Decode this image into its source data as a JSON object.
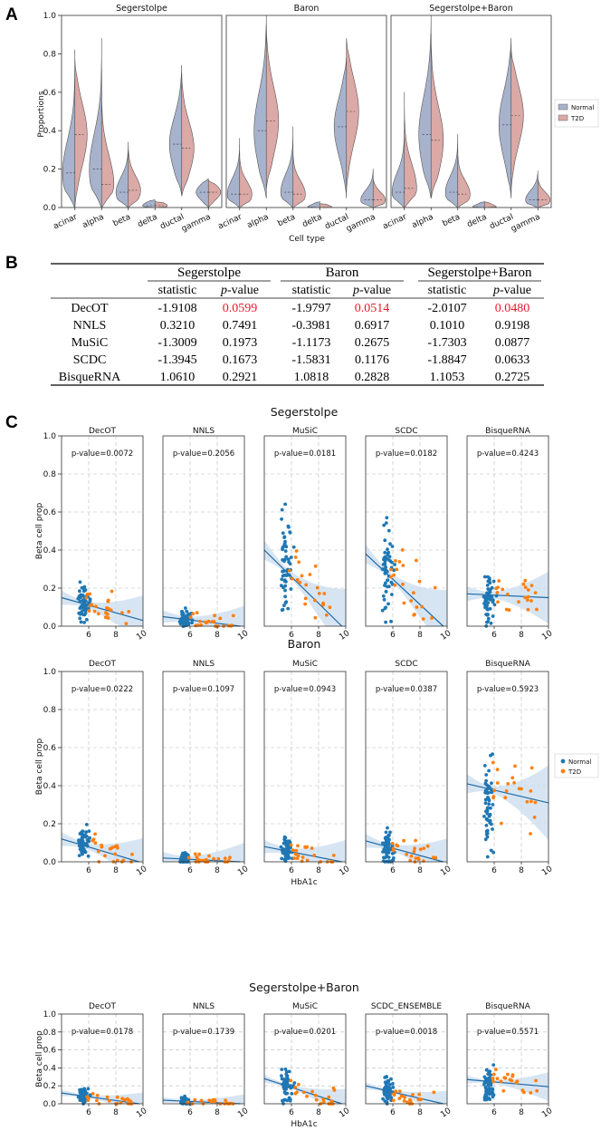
{
  "labels": {
    "A": "A",
    "B": "B",
    "C": "C"
  },
  "colors": {
    "normal": "#a7b3cc",
    "t2d": "#dba9a6",
    "dot_normal": "#1f77b4",
    "dot_t2d": "#ff7f0e",
    "line": "#1f6aa5",
    "band": "#c9dcef",
    "highlight": "#e8192c"
  },
  "panel_a": {
    "chart_data": {
      "type": "violin",
      "ylabel": "Proportions",
      "xlabel": "Cell type",
      "ylim": [
        0,
        1
      ],
      "yticks": [
        "0.0",
        "0.2",
        "0.4",
        "0.6",
        "0.8",
        "1.0"
      ],
      "categories": [
        "acinar",
        "alpha",
        "beta",
        "delta",
        "ductal",
        "gamma"
      ],
      "legend": {
        "position": "right",
        "entries": [
          "Normal",
          "T2D"
        ]
      },
      "panels": [
        {
          "title": "Segerstolpe",
          "normal_range": [
            [
              0,
              0.82
            ],
            [
              0,
              0.88
            ],
            [
              0,
              0.34
            ],
            [
              0,
              0.04
            ],
            [
              0.07,
              0.74
            ],
            [
              0,
              0.15
            ]
          ],
          "t2d_range": [
            [
              0,
              0.77
            ],
            [
              0,
              0.72
            ],
            [
              0,
              0.32
            ],
            [
              0,
              0.03
            ],
            [
              0.06,
              0.7
            ],
            [
              0,
              0.14
            ]
          ],
          "normal_median": [
            0.18,
            0.2,
            0.08,
            0.01,
            0.33,
            0.08
          ],
          "t2d_median": [
            0.38,
            0.12,
            0.09,
            0.01,
            0.31,
            0.08
          ]
        },
        {
          "title": "Baron",
          "normal_range": [
            [
              0,
              0.36
            ],
            [
              0.05,
              1.0
            ],
            [
              0,
              0.42
            ],
            [
              0,
              0.03
            ],
            [
              0.05,
              0.78
            ],
            [
              0,
              0.2
            ]
          ],
          "t2d_range": [
            [
              0,
              0.28
            ],
            [
              0.1,
              0.95
            ],
            [
              0,
              0.3
            ],
            [
              0,
              0.02
            ],
            [
              0.08,
              0.88
            ],
            [
              0,
              0.15
            ]
          ],
          "normal_median": [
            0.07,
            0.4,
            0.08,
            0.0,
            0.42,
            0.04
          ],
          "t2d_median": [
            0.07,
            0.45,
            0.07,
            0.0,
            0.5,
            0.04
          ]
        },
        {
          "title": "Segerstolpe+Baron",
          "normal_range": [
            [
              0,
              0.45
            ],
            [
              0.05,
              1.0
            ],
            [
              0,
              0.38
            ],
            [
              0,
              0.03
            ],
            [
              0.05,
              0.88
            ],
            [
              0,
              0.19
            ]
          ],
          "t2d_range": [
            [
              0,
              0.6
            ],
            [
              0.05,
              0.9
            ],
            [
              0,
              0.3
            ],
            [
              0,
              0.03
            ],
            [
              0.08,
              0.82
            ],
            [
              0,
              0.15
            ]
          ],
          "normal_median": [
            0.08,
            0.38,
            0.08,
            0.0,
            0.43,
            0.04
          ],
          "t2d_median": [
            0.1,
            0.35,
            0.07,
            0.0,
            0.48,
            0.04
          ]
        }
      ]
    }
  },
  "panel_b": {
    "groups": [
      "Segerstolpe",
      "Baron",
      "Segerstolpe+Baron"
    ],
    "subheaders": [
      "statistic",
      "p",
      "-value"
    ],
    "rows": [
      {
        "method": "DecOT",
        "values": [
          "-1.9108",
          "0.0599",
          "-1.9797",
          "0.0514",
          "-2.0107",
          "0.0480"
        ],
        "red": [
          false,
          true,
          false,
          true,
          false,
          true
        ]
      },
      {
        "method": "NNLS",
        "values": [
          "0.3210",
          "0.7491",
          "-0.3981",
          "0.6917",
          "0.1010",
          "0.9198"
        ],
        "red": [
          false,
          false,
          false,
          false,
          false,
          false
        ]
      },
      {
        "method": "MuSiC",
        "values": [
          "-1.3009",
          "0.1973",
          "-1.1173",
          "0.2675",
          "-1.7303",
          "0.0877"
        ],
        "red": [
          false,
          false,
          false,
          false,
          false,
          false
        ]
      },
      {
        "method": "SCDC",
        "values": [
          "-1.3945",
          "0.1673",
          "-1.5831",
          "0.1176",
          "-1.8847",
          "0.0633"
        ],
        "red": [
          false,
          false,
          false,
          false,
          false,
          false
        ]
      },
      {
        "method": "BisqueRNA",
        "values": [
          "1.0610",
          "0.2921",
          "1.0818",
          "0.2828",
          "1.1053",
          "0.2725"
        ],
        "red": [
          false,
          false,
          false,
          false,
          false,
          false
        ]
      }
    ]
  },
  "panel_c": {
    "chart_data": {
      "type": "scatter",
      "ylabel": "Beta cell prop",
      "xlabel": "HbA1c",
      "xlim": [
        4,
        10
      ],
      "ylim": [
        0,
        1
      ],
      "xticks": [
        "6",
        "8",
        "10"
      ],
      "yticks": [
        "0.0",
        "0.2",
        "0.4",
        "0.6",
        "0.8",
        "1.0"
      ],
      "legend": {
        "position": "right",
        "entries": [
          "Normal",
          "T2D"
        ]
      },
      "rows": [
        {
          "title": "Segerstolpe",
          "plots": [
            {
              "method": "DecOT",
              "pvalue": "p-value=0.0072",
              "fit": [
                0.15,
                0.03
              ]
            },
            {
              "method": "NNLS",
              "pvalue": "p-value=0.2056",
              "fit": [
                0.05,
                0.0
              ]
            },
            {
              "method": "MuSiC",
              "pvalue": "p-value=0.0181",
              "fit": [
                0.4,
                0.0
              ]
            },
            {
              "method": "SCDC",
              "pvalue": "p-value=0.0182",
              "fit": [
                0.38,
                0.0
              ]
            },
            {
              "method": "BisqueRNA",
              "pvalue": "p-value=0.4243",
              "fit": [
                0.17,
                0.15
              ]
            }
          ]
        },
        {
          "title": "Baron",
          "plots": [
            {
              "method": "DecOT",
              "pvalue": "p-value=0.0222",
              "fit": [
                0.12,
                0.0
              ]
            },
            {
              "method": "NNLS",
              "pvalue": "p-value=0.1097",
              "fit": [
                0.02,
                0.0
              ]
            },
            {
              "method": "MuSiC",
              "pvalue": "p-value=0.0943",
              "fit": [
                0.08,
                0.0
              ]
            },
            {
              "method": "SCDC",
              "pvalue": "p-value=0.0387",
              "fit": [
                0.11,
                0.0
              ]
            },
            {
              "method": "BisqueRNA",
              "pvalue": "p-value=0.5923",
              "fit": [
                0.41,
                0.31
              ]
            }
          ]
        },
        {
          "title": "Segerstolpe+Baron",
          "plots": [
            {
              "method": "DecOT",
              "pvalue": "p-value=0.0178",
              "fit": [
                0.12,
                0.0
              ]
            },
            {
              "method": "NNLS",
              "pvalue": "p-value=0.1739",
              "fit": [
                0.04,
                0.0
              ]
            },
            {
              "method": "MuSiC",
              "pvalue": "p-value=0.0201",
              "fit": [
                0.28,
                0.0
              ]
            },
            {
              "method": "SCDC_ENSEMBLE",
              "pvalue": "p-value=0.0018",
              "fit": [
                0.2,
                0.0
              ]
            },
            {
              "method": "BisqueRNA",
              "pvalue": "p-value=0.5571",
              "fit": [
                0.27,
                0.19
              ]
            }
          ]
        }
      ]
    }
  }
}
